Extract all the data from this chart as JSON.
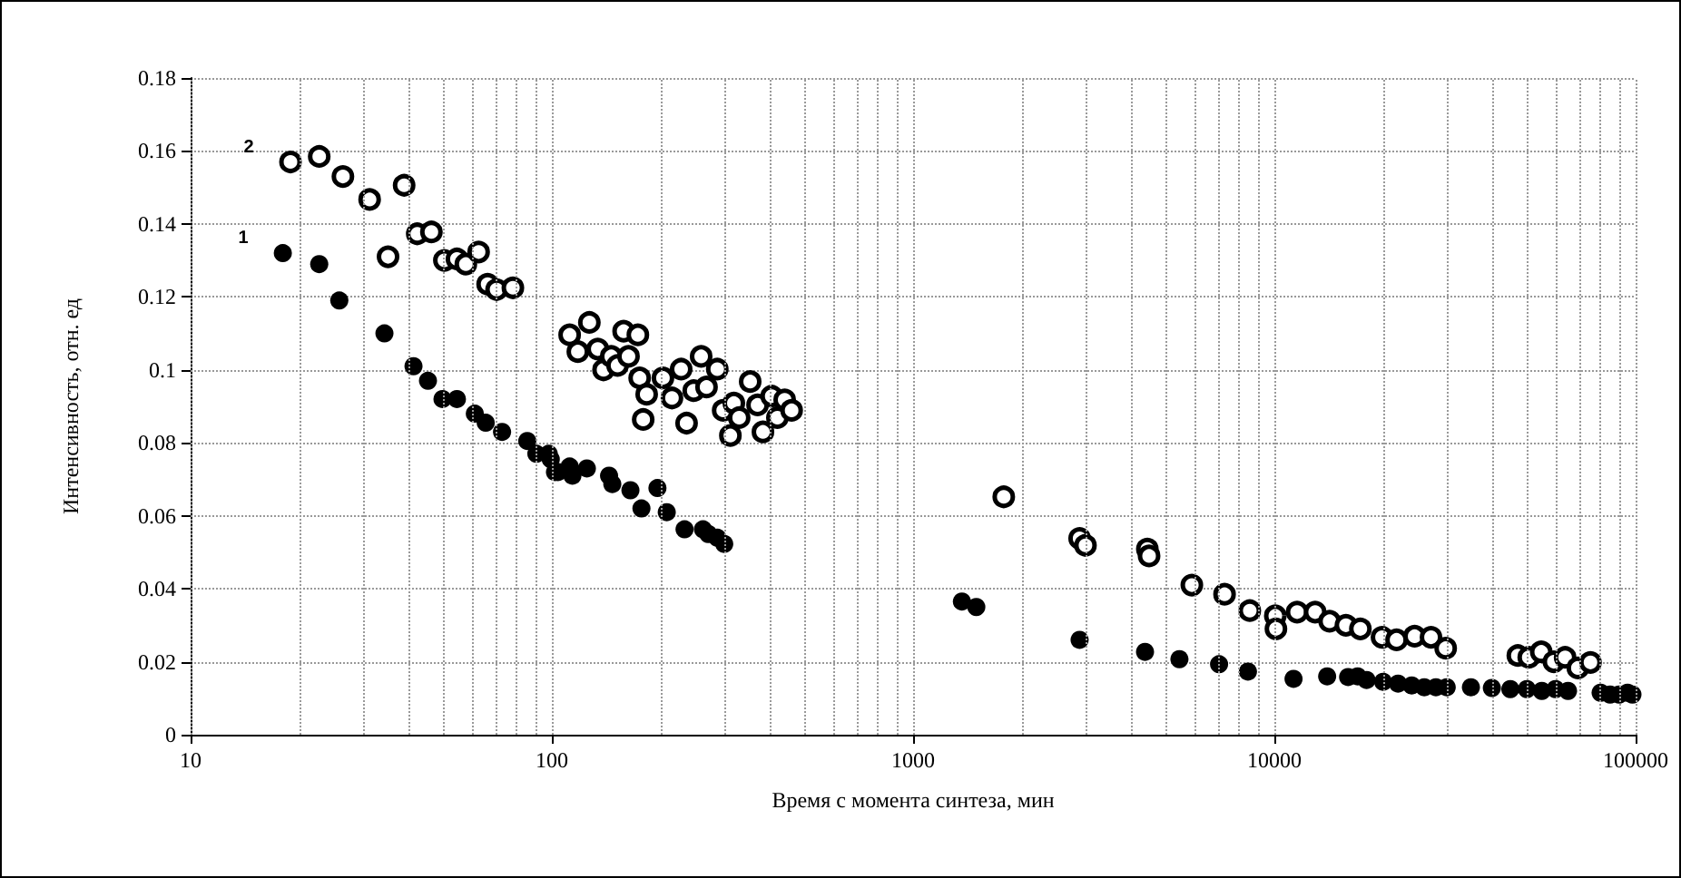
{
  "chart_data": {
    "type": "scatter",
    "xlabel": "Время с момента синтеза, мин",
    "ylabel": "Интенсивность, отн. ед",
    "log": "x",
    "grid": true,
    "legend": false,
    "marker": "circle",
    "xlim": [
      10,
      100000
    ],
    "ylim": [
      0,
      0.18
    ],
    "xticks": [
      10,
      {
        "value": 20,
        "label": null
      },
      {
        "value": 30,
        "label": null
      },
      {
        "value": 40,
        "label": null
      },
      {
        "value": 50,
        "label": null
      },
      {
        "value": 60,
        "label": null
      },
      {
        "value": 70,
        "label": null
      },
      {
        "value": 80,
        "label": null
      },
      {
        "value": 90,
        "label": null
      },
      100,
      {
        "value": 200,
        "label": null
      },
      {
        "value": 300,
        "label": null
      },
      {
        "value": 400,
        "label": null
      },
      {
        "value": 500,
        "label": null
      },
      {
        "value": 600,
        "label": null
      },
      {
        "value": 700,
        "label": null
      },
      {
        "value": 800,
        "label": null
      },
      {
        "value": 900,
        "label": null
      },
      1000,
      {
        "value": 2000,
        "label": null
      },
      {
        "value": 3000,
        "label": null
      },
      {
        "value": 4000,
        "label": null
      },
      {
        "value": 5000,
        "label": null
      },
      {
        "value": 6000,
        "label": null
      },
      {
        "value": 7000,
        "label": null
      },
      {
        "value": 8000,
        "label": null
      },
      {
        "value": 9000,
        "label": null
      },
      10000,
      {
        "value": 20000,
        "label": null
      },
      {
        "value": 30000,
        "label": null
      },
      {
        "value": 40000,
        "label": null
      },
      {
        "value": 50000,
        "label": null
      },
      {
        "value": 60000,
        "label": null
      },
      {
        "value": 70000,
        "label": null
      },
      {
        "value": 80000,
        "label": null
      },
      {
        "value": 90000,
        "label": null
      },
      100000
    ],
    "yticks": [
      0,
      0.02,
      0.04,
      0.06,
      0.08,
      0.1,
      0.12,
      0.14,
      0.16,
      0.18
    ],
    "series": [
      {
        "name": "1",
        "color": "#000000",
        "x": [
          18,
          22.7,
          25.8,
          34.4,
          41.4,
          45.4,
          49.8,
          54.6,
          61.2,
          65.6,
          72.8,
          85.5,
          90.6,
          98,
          99.3,
          102,
          104,
          112,
          114,
          125,
          144,
          147,
          165,
          177,
          196,
          208,
          233,
          262,
          271,
          287,
          300,
          1365,
          1496,
          2890,
          4385,
          5460,
          7030,
          8450,
          11300,
          14000,
          16000,
          17000,
          18000,
          20000,
          22000,
          24000,
          26000,
          28000,
          30000,
          35000,
          40000,
          45000,
          50000,
          55000,
          60000,
          65000,
          80000,
          85000,
          90000,
          95000,
          98000
        ],
        "values": [
          0.132,
          0.129,
          0.119,
          0.11,
          0.101,
          0.097,
          0.092,
          0.092,
          0.088,
          0.0855,
          0.083,
          0.0805,
          0.077,
          0.077,
          0.0755,
          0.072,
          0.072,
          0.0735,
          0.071,
          0.073,
          0.071,
          0.0687,
          0.067,
          0.062,
          0.0676,
          0.061,
          0.0563,
          0.0563,
          0.055,
          0.054,
          0.0523,
          0.0365,
          0.035,
          0.026,
          0.0227,
          0.0207,
          0.0193,
          0.0173,
          0.0153,
          0.016,
          0.0158,
          0.016,
          0.015,
          0.0145,
          0.014,
          0.0135,
          0.013,
          0.013,
          0.013,
          0.013,
          0.0128,
          0.0125,
          0.0125,
          0.012,
          0.0125,
          0.012,
          0.0115,
          0.011,
          0.011,
          0.0115,
          0.011
        ]
      },
      {
        "name": "2",
        "color": "#000000",
        "marker": "circle-open",
        "x": [
          18.9,
          22.7,
          26.4,
          31.3,
          35.2,
          39,
          42.4,
          46.4,
          50.4,
          54.6,
          57.8,
          62.7,
          66.4,
          70.3,
          78,
          112,
          118,
          127,
          134,
          139,
          146,
          152,
          158,
          163,
          173,
          175,
          179,
          183,
          203,
          215,
          228,
          236,
          247,
          259,
          268,
          287,
          298,
          312,
          319,
          330,
          354,
          371,
          384,
          406,
          421,
          441,
          461,
          1782,
          2890,
          3000,
          4450,
          4500,
          5910,
          7280,
          8550,
          10060,
          10100,
          11560,
          12970,
          14220,
          15780,
          17300,
          19860,
          21790,
          24450,
          27140,
          29800,
          47200,
          50600,
          54800,
          59400,
          63800,
          69200,
          75000
        ],
        "values": [
          0.157,
          0.1585,
          0.153,
          0.1467,
          0.131,
          0.1506,
          0.1373,
          0.1378,
          0.13,
          0.1304,
          0.129,
          0.1323,
          0.1235,
          0.122,
          0.1225,
          0.1096,
          0.105,
          0.113,
          0.1057,
          0.1,
          0.1037,
          0.1012,
          0.1106,
          0.1037,
          0.1096,
          0.0978,
          0.0864,
          0.0933,
          0.0978,
          0.0923,
          0.1002,
          0.0854,
          0.0943,
          0.1037,
          0.0953,
          0.1002,
          0.0889,
          0.082,
          0.0909,
          0.0869,
          0.0968,
          0.0904,
          0.083,
          0.0928,
          0.0869,
          0.0918,
          0.0889,
          0.0652,
          0.0538,
          0.0519,
          0.0509,
          0.049,
          0.041,
          0.0385,
          0.034,
          0.0326,
          0.029,
          0.0336,
          0.0336,
          0.0311,
          0.03,
          0.029,
          0.0267,
          0.026,
          0.027,
          0.0267,
          0.0237,
          0.0217,
          0.0212,
          0.0227,
          0.02,
          0.0212,
          0.0183,
          0.0198
        ]
      }
    ]
  }
}
